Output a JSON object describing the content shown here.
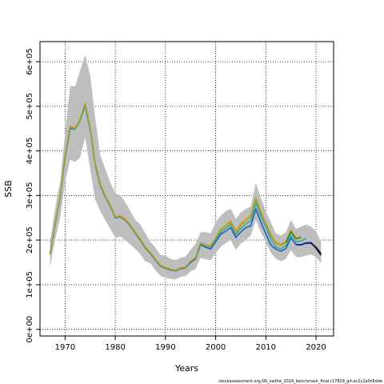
{
  "chart_data": {
    "type": "line",
    "xlabel": "Years",
    "ylabel": "SSB",
    "xlim": [
      1965,
      2023.5
    ],
    "ylim": [
      -15000,
      645000
    ],
    "x_ticks": [
      1970,
      1980,
      1990,
      2000,
      2010,
      2020
    ],
    "x_tick_labels": [
      "1970",
      "1980",
      "1990",
      "2000",
      "2010",
      "2020"
    ],
    "y_ticks": [
      0,
      100000,
      200000,
      300000,
      400000,
      500000,
      600000
    ],
    "y_tick_labels": [
      "0e+00",
      "1e+05",
      "2e+05",
      "3e+05",
      "4e+05",
      "5e+05",
      "6e+05"
    ],
    "grid": true,
    "credit": "stockassessment.org,NS_saithe_2024_benchmark_final,r17829_git:ec2c2a0c6dde",
    "colors": {
      "band": "#bebebe",
      "olive": "#8aa63a",
      "orange": "#f0a030",
      "teal": "#3aa6a0",
      "blue": "#2060c0",
      "green": "#2e8b3a",
      "navy": "#1c1f70",
      "black": "#111111"
    },
    "band": {
      "x": [
        1967,
        1968,
        1969,
        1970,
        1971,
        1972,
        1973,
        1974,
        1975,
        1976,
        1977,
        1978,
        1979,
        1980,
        1981,
        1982,
        1983,
        1984,
        1985,
        1986,
        1987,
        1988,
        1989,
        1990,
        1991,
        1992,
        1993,
        1994,
        1995,
        1996,
        1997,
        1998,
        1999,
        2000,
        2001,
        2002,
        2003,
        2004,
        2005,
        2006,
        2007,
        2008,
        2009,
        2010,
        2011,
        2012,
        2013,
        2014,
        2015,
        2016,
        2017,
        2018,
        2019,
        2020,
        2021
      ],
      "lower": [
        140000,
        200000,
        250000,
        330000,
        380000,
        375000,
        385000,
        430000,
        360000,
        290000,
        265000,
        245000,
        225000,
        205000,
        208000,
        200000,
        190000,
        180000,
        168000,
        152000,
        148000,
        133000,
        120000,
        115000,
        113000,
        112000,
        118000,
        119000,
        130000,
        135000,
        160000,
        157000,
        155000,
        170000,
        185000,
        193000,
        200000,
        178000,
        192000,
        200000,
        210000,
        245000,
        218000,
        195000,
        172000,
        158000,
        153000,
        158000,
        178000,
        162000,
        162000,
        165000,
        168000,
        162000,
        148000
      ],
      "upper": [
        195000,
        270000,
        330000,
        440000,
        545000,
        545000,
        580000,
        615000,
        570000,
        475000,
        390000,
        360000,
        330000,
        305000,
        300000,
        285000,
        265000,
        245000,
        235000,
        215000,
        196000,
        183000,
        167000,
        165000,
        158000,
        155000,
        160000,
        163000,
        178000,
        192000,
        218000,
        218000,
        215000,
        240000,
        255000,
        265000,
        270000,
        248000,
        262000,
        270000,
        275000,
        328000,
        295000,
        265000,
        240000,
        215000,
        210000,
        218000,
        245000,
        225000,
        230000,
        235000,
        230000,
        220000,
        195000
      ]
    },
    "series": [
      {
        "color_key": "teal",
        "x": [
          1967,
          1968,
          1969,
          1970,
          1971,
          1972,
          1973,
          1974,
          1975,
          1976,
          1977,
          1978,
          1979,
          1980,
          1981,
          1982,
          1983,
          1984,
          1985,
          1986,
          1987,
          1988,
          1989,
          1990,
          1991,
          1992,
          1993,
          1994,
          1995,
          1996,
          1997,
          1998,
          1999,
          2000,
          2001,
          2002,
          2003,
          2004,
          2005,
          2006,
          2007,
          2008,
          2009,
          2010,
          2011,
          2012,
          2013,
          2014,
          2015,
          2016,
          2017,
          2018
        ],
        "y": [
          168000,
          235000,
          295000,
          385000,
          450000,
          448000,
          468000,
          502000,
          448000,
          370000,
          323000,
          297000,
          276000,
          250000,
          252000,
          245000,
          232000,
          215000,
          200000,
          182000,
          170000,
          155000,
          142000,
          137000,
          133000,
          131000,
          136000,
          138000,
          150000,
          158000,
          190000,
          185000,
          182000,
          199000,
          217000,
          226000,
          235000,
          212000,
          226000,
          236000,
          244000,
          283000,
          253000,
          228000,
          202000,
          185000,
          180000,
          188000,
          212000,
          196000,
          198000,
          204000
        ]
      },
      {
        "color_key": "blue",
        "x": [
          1967,
          1968,
          1969,
          1970,
          1971,
          1972,
          1973,
          1974,
          1975,
          1976,
          1977,
          1978,
          1979,
          1980,
          1981,
          1982,
          1983,
          1984,
          1985,
          1986,
          1987,
          1988,
          1989,
          1990,
          1991,
          1992,
          1993,
          1994,
          1995,
          1996,
          1997,
          1998,
          1999,
          2000,
          2001,
          2002,
          2003,
          2004,
          2005,
          2006,
          2007,
          2008,
          2009,
          2010,
          2011,
          2012,
          2013,
          2014,
          2015,
          2016,
          2017,
          2018,
          2019
        ],
        "y": [
          168000,
          236000,
          295000,
          386000,
          452000,
          450000,
          470000,
          503000,
          449000,
          370000,
          323000,
          297000,
          276000,
          250000,
          252000,
          245000,
          232000,
          215000,
          200000,
          182000,
          170000,
          155000,
          142000,
          137000,
          133000,
          131000,
          136000,
          138000,
          150000,
          158000,
          190000,
          184000,
          180000,
          196000,
          213000,
          220000,
          228000,
          206000,
          218000,
          228000,
          232000,
          270000,
          240000,
          214000,
          189000,
          180000,
          175000,
          181000,
          205000,
          190000,
          190000,
          194000,
          195000
        ]
      },
      {
        "color_key": "navy",
        "x": [
          2016,
          2017,
          2018,
          2019,
          2020,
          2021
        ],
        "y": [
          190000,
          189000,
          193000,
          193000,
          184000,
          170000
        ]
      },
      {
        "color_key": "black",
        "x": [
          2019,
          2020,
          2021
        ],
        "y": [
          194000,
          182000,
          166000
        ]
      },
      {
        "color_key": "orange",
        "x": [
          1967,
          1968,
          1969,
          1970,
          1971,
          1972,
          1973,
          1974,
          1975,
          1976,
          1977,
          1978,
          1979,
          1980,
          1981,
          1982,
          1983,
          1984,
          1985,
          1986,
          1987,
          1988,
          1989,
          1990,
          1991,
          1992,
          1993,
          1994,
          1995,
          1996,
          1997,
          1998,
          1999,
          2000,
          2001,
          2002,
          2003,
          2004,
          2005,
          2006,
          2007,
          2008,
          2009,
          2010,
          2011,
          2012,
          2013,
          2014,
          2015,
          2016,
          2017
        ],
        "y": [
          169000,
          237000,
          297000,
          390000,
          456000,
          452000,
          472000,
          507000,
          452000,
          373000,
          327000,
          300000,
          279000,
          253000,
          255000,
          248000,
          235000,
          218000,
          203000,
          185000,
          173000,
          158000,
          145000,
          139000,
          135000,
          133000,
          138000,
          140000,
          153000,
          161000,
          195000,
          190000,
          188000,
          206000,
          225000,
          235000,
          244000,
          222000,
          237000,
          248000,
          256000,
          296000,
          266000,
          240000,
          214000,
          196000,
          191000,
          198000,
          223000,
          205000,
          207000
        ]
      },
      {
        "color_key": "olive",
        "x": [
          1967,
          1968,
          1969,
          1970,
          1971,
          1972,
          1973,
          1974,
          1975,
          1976,
          1977,
          1978,
          1979,
          1980,
          1981,
          1982,
          1983,
          1984,
          1985,
          1986,
          1987,
          1988,
          1989,
          1990,
          1991,
          1992,
          1993,
          1994,
          1995,
          1996,
          1997,
          1998,
          1999,
          2000,
          2001,
          2002,
          2003,
          2004,
          2005,
          2006,
          2007,
          2008,
          2009,
          2010,
          2011,
          2012,
          2013,
          2014,
          2015,
          2016,
          2017
        ],
        "y": [
          169000,
          236000,
          296000,
          388000,
          454000,
          450000,
          470000,
          505000,
          450000,
          371000,
          325000,
          298000,
          277000,
          251000,
          253000,
          246000,
          233000,
          216000,
          201000,
          183000,
          171000,
          156000,
          143000,
          138000,
          134000,
          132000,
          137000,
          139000,
          152000,
          160000,
          193000,
          189000,
          186000,
          204000,
          223000,
          232000,
          240000,
          218000,
          233000,
          244000,
          252000,
          292000,
          262000,
          236000,
          210000,
          193000,
          188000,
          195000,
          220000,
          203000,
          205000
        ]
      },
      {
        "color_key": "green",
        "x": [
          2014,
          2015,
          2016,
          2017
        ],
        "y": [
          195000,
          219000,
          203000,
          206000
        ]
      }
    ]
  }
}
